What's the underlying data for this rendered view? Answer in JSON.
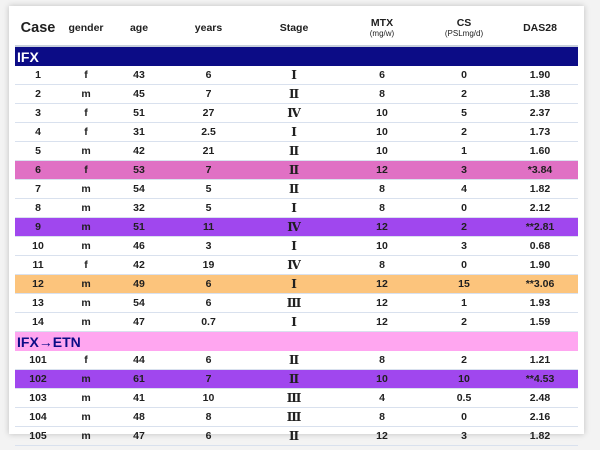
{
  "headers": {
    "case": "Case",
    "gender": "gender",
    "age": "age",
    "years": "years",
    "stage": "Stage",
    "mtx": "MTX",
    "mtx_unit": "(mg/w)",
    "cs": "CS",
    "cs_unit": "(PSLmg/d)",
    "das28": "DAS28"
  },
  "groups": [
    {
      "label": "IFX",
      "style": "grp-ifx",
      "rows": [
        {
          "case": "1",
          "gender": "f",
          "age": "43",
          "years": "6",
          "stage": "Ⅰ",
          "mtx": "6",
          "cs": "0",
          "das28": "1.90",
          "hl": ""
        },
        {
          "case": "2",
          "gender": "m",
          "age": "45",
          "years": "7",
          "stage": "Ⅱ",
          "mtx": "8",
          "cs": "2",
          "das28": "1.38",
          "hl": ""
        },
        {
          "case": "3",
          "gender": "f",
          "age": "51",
          "years": "27",
          "stage": "Ⅳ",
          "mtx": "10",
          "cs": "5",
          "das28": "2.37",
          "hl": ""
        },
        {
          "case": "4",
          "gender": "f",
          "age": "31",
          "years": "2.5",
          "stage": "Ⅰ",
          "mtx": "10",
          "cs": "2",
          "das28": "1.73",
          "hl": ""
        },
        {
          "case": "5",
          "gender": "m",
          "age": "42",
          "years": "21",
          "stage": "Ⅱ",
          "mtx": "10",
          "cs": "1",
          "das28": "1.60",
          "hl": ""
        },
        {
          "case": "6",
          "gender": "f",
          "age": "53",
          "years": "7",
          "stage": "Ⅱ",
          "mtx": "12",
          "cs": "3",
          "das28": "*3.84",
          "hl": "hl-pink"
        },
        {
          "case": "7",
          "gender": "m",
          "age": "54",
          "years": "5",
          "stage": "Ⅱ",
          "mtx": "8",
          "cs": "4",
          "das28": "1.82",
          "hl": ""
        },
        {
          "case": "8",
          "gender": "m",
          "age": "32",
          "years": "5",
          "stage": "Ⅰ",
          "mtx": "8",
          "cs": "0",
          "das28": "2.12",
          "hl": ""
        },
        {
          "case": "9",
          "gender": "m",
          "age": "51",
          "years": "11",
          "stage": "Ⅳ",
          "mtx": "12",
          "cs": "2",
          "das28": "**2.81",
          "hl": "hl-violet"
        },
        {
          "case": "10",
          "gender": "m",
          "age": "46",
          "years": "3",
          "stage": "Ⅰ",
          "mtx": "10",
          "cs": "3",
          "das28": "0.68",
          "hl": ""
        },
        {
          "case": "11",
          "gender": "f",
          "age": "42",
          "years": "19",
          "stage": "Ⅳ",
          "mtx": "8",
          "cs": "0",
          "das28": "1.90",
          "hl": ""
        },
        {
          "case": "12",
          "gender": "m",
          "age": "49",
          "years": "6",
          "stage": "Ⅰ",
          "mtx": "12",
          "cs": "15",
          "das28": "**3.06",
          "hl": "hl-orange"
        },
        {
          "case": "13",
          "gender": "m",
          "age": "54",
          "years": "6",
          "stage": "Ⅲ",
          "mtx": "12",
          "cs": "1",
          "das28": "1.93",
          "hl": ""
        },
        {
          "case": "14",
          "gender": "m",
          "age": "47",
          "years": "0.7",
          "stage": "Ⅰ",
          "mtx": "12",
          "cs": "2",
          "das28": "1.59",
          "hl": ""
        }
      ]
    },
    {
      "label": "IFX→ETN",
      "style": "grp-ifx-etn",
      "rows": [
        {
          "case": "101",
          "gender": "f",
          "age": "44",
          "years": "6",
          "stage": "Ⅱ",
          "mtx": "8",
          "cs": "2",
          "das28": "1.21",
          "hl": ""
        },
        {
          "case": "102",
          "gender": "m",
          "age": "61",
          "years": "7",
          "stage": "Ⅱ",
          "mtx": "10",
          "cs": "10",
          "das28": "**4.53",
          "hl": "hl-violet"
        },
        {
          "case": "103",
          "gender": "m",
          "age": "41",
          "years": "10",
          "stage": "Ⅲ",
          "mtx": "4",
          "cs": "0.5",
          "das28": "2.48",
          "hl": ""
        },
        {
          "case": "104",
          "gender": "m",
          "age": "48",
          "years": "8",
          "stage": "Ⅲ",
          "mtx": "8",
          "cs": "0",
          "das28": "2.16",
          "hl": ""
        },
        {
          "case": "105",
          "gender": "m",
          "age": "47",
          "years": "6",
          "stage": "Ⅱ",
          "mtx": "12",
          "cs": "3",
          "das28": "1.82",
          "hl": ""
        }
      ]
    }
  ]
}
